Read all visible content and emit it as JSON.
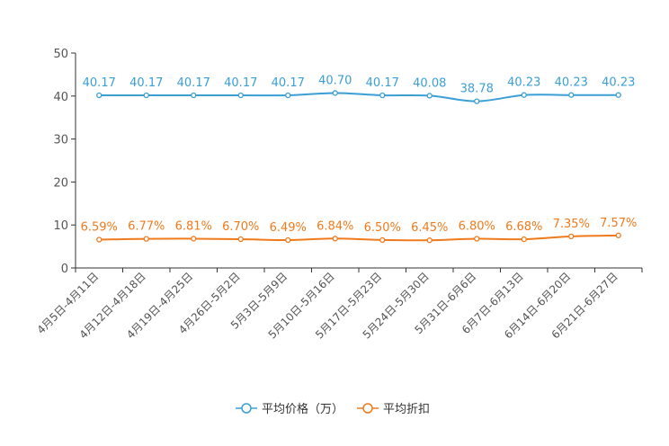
{
  "chart_data": {
    "type": "line",
    "categories": [
      "4月5日-4月11日",
      "4月12日-4月18日",
      "4月19日-4月25日",
      "4月26日-5月2日",
      "5月3日-5月9日",
      "5月10日-5月16日",
      "5月17日-5月23日",
      "5月24日-5月30日",
      "5月31日-6月6日",
      "6月7日-6月13日",
      "6月14日-6月20日",
      "6月21日-6月27日"
    ],
    "ylim": [
      0,
      50
    ],
    "yticks": [
      0,
      10,
      20,
      30,
      40,
      50
    ],
    "series": [
      {
        "name": "平均价格（万）",
        "color": "#3a9fd5",
        "values": [
          40.17,
          40.17,
          40.17,
          40.17,
          40.17,
          40.7,
          40.17,
          40.08,
          38.78,
          40.23,
          40.23,
          40.23
        ],
        "labels": [
          "40.17",
          "40.17",
          "40.17",
          "40.17",
          "40.17",
          "40.70",
          "40.17",
          "40.08",
          "38.78",
          "40.23",
          "40.23",
          "40.23"
        ]
      },
      {
        "name": "平均折扣",
        "color": "#f07a1c",
        "values": [
          6.59,
          6.77,
          6.81,
          6.7,
          6.49,
          6.84,
          6.5,
          6.45,
          6.8,
          6.68,
          7.35,
          7.57
        ],
        "labels": [
          "6.59%",
          "6.77%",
          "6.81%",
          "6.70%",
          "6.49%",
          "6.84%",
          "6.50%",
          "6.45%",
          "6.80%",
          "6.68%",
          "7.35%",
          "7.57%"
        ]
      }
    ],
    "legend": "bottom-center"
  }
}
